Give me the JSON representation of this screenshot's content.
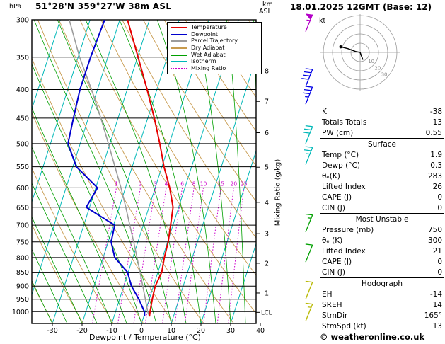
{
  "header": {
    "pressure_unit": "hPa",
    "title": "51°28'N 359°27'W 38m ASL",
    "altitude_unit_top": "km",
    "altitude_unit_bottom": "ASL",
    "datetime": "18.01.2025 12GMT (Base: 12)"
  },
  "axes": {
    "pressure_ticks": [
      300,
      350,
      400,
      450,
      500,
      550,
      600,
      650,
      700,
      750,
      800,
      850,
      900,
      950,
      1000
    ],
    "temp_ticks": [
      -30,
      -20,
      -10,
      0,
      10,
      20,
      30,
      40
    ],
    "xlabel": "Dewpoint / Temperature (°C)",
    "right_axis_label": "Mixing Ratio (g/kg)",
    "km_ticks": [
      {
        "km": 8,
        "p": 370
      },
      {
        "km": 7,
        "p": 420
      },
      {
        "km": 6,
        "p": 478
      },
      {
        "km": 5,
        "p": 551
      },
      {
        "km": 4,
        "p": 637
      },
      {
        "km": 3,
        "p": 725
      },
      {
        "km": 2,
        "p": 819
      },
      {
        "km": 1,
        "p": 926
      }
    ],
    "lcl_label": "LCL",
    "lcl_pressure": 1003
  },
  "legend": [
    {
      "label": "Temperature",
      "color": "#e60000",
      "style": "solid"
    },
    {
      "label": "Dewpoint",
      "color": "#0000cd",
      "style": "solid"
    },
    {
      "label": "Parcel Trajectory",
      "color": "#9c9c9c",
      "style": "solid"
    },
    {
      "label": "Dry Adiabat",
      "color": "#c89b4e",
      "style": "solid"
    },
    {
      "label": "Wet Adiabat",
      "color": "#00a000",
      "style": "solid"
    },
    {
      "label": "Isotherm",
      "color": "#00b8b8",
      "style": "solid"
    },
    {
      "label": "Mixing Ratio",
      "color": "#cc00cc",
      "style": "dotted"
    }
  ],
  "chart_data": {
    "type": "skew-t log-p sounding",
    "pressure_range_hpa": [
      300,
      1050
    ],
    "temperature_axis_c": [
      -30,
      40
    ],
    "temperature_profile": {
      "pressure_hpa": [
        1020,
        1000,
        950,
        900,
        850,
        800,
        750,
        700,
        650,
        600,
        550,
        500,
        450,
        400,
        350,
        300
      ],
      "temp_c": [
        1.9,
        1.6,
        1.0,
        0.6,
        1.3,
        0.6,
        0.2,
        -0.8,
        -1.9,
        -5.1,
        -9.3,
        -13.2,
        -17.8,
        -23.3,
        -29.8,
        -37.4
      ]
    },
    "dewpoint_profile": {
      "pressure_hpa": [
        1020,
        1000,
        950,
        900,
        850,
        800,
        750,
        700,
        650,
        600,
        550,
        500,
        450,
        400,
        350,
        300
      ],
      "temp_c": [
        0.3,
        -0.3,
        -3.5,
        -7.4,
        -10.2,
        -16.1,
        -19.0,
        -19.6,
        -31.1,
        -29.4,
        -38.8,
        -44.1,
        -45.0,
        -45.9,
        -45.8,
        -45.1
      ]
    },
    "parcel_profile": {
      "pressure_hpa": [
        1020,
        1000,
        950,
        900,
        850,
        800,
        750,
        700,
        650,
        600,
        550,
        500,
        450,
        400,
        350,
        300
      ],
      "temp_c": [
        1.9,
        0.8,
        -1.3,
        -3.6,
        -6.0,
        -8.6,
        -11.4,
        -14.5,
        -17.8,
        -21.5,
        -25.8,
        -30.5,
        -35.8,
        -42.0,
        -49.5,
        -57.0
      ]
    },
    "isotherms_c": {
      "min": -120,
      "max": 40,
      "step": 10
    },
    "dry_adiabats_theta_k": {
      "min": 230,
      "max": 440,
      "step": 10
    },
    "wet_adiabats_start_c": {
      "min": -30,
      "max": 40,
      "step": 5
    },
    "mixing_ratio_g_kg": [
      1,
      2,
      3,
      4,
      6,
      8,
      10,
      15,
      20,
      25
    ],
    "mixing_ratio_label_pressure": 600,
    "wind_barbs": [
      {
        "pressure": 315,
        "speed_kt": 55,
        "color": "#b400c8"
      },
      {
        "pressure": 395,
        "speed_kt": 40,
        "color": "#0000e6"
      },
      {
        "pressure": 425,
        "speed_kt": 35,
        "color": "#0000e6"
      },
      {
        "pressure": 500,
        "speed_kt": 30,
        "color": "#00b8b8"
      },
      {
        "pressure": 545,
        "speed_kt": 25,
        "color": "#00b8b8"
      },
      {
        "pressure": 720,
        "speed_kt": 15,
        "color": "#00a000"
      },
      {
        "pressure": 815,
        "speed_kt": 10,
        "color": "#00a000"
      },
      {
        "pressure": 950,
        "speed_kt": 10,
        "color": "#b8b800"
      },
      {
        "pressure": 1040,
        "speed_kt": 13,
        "color": "#b8b800"
      }
    ]
  },
  "hodograph": {
    "unit_label": "kt",
    "rings_kt": [
      10,
      20,
      30,
      40
    ],
    "ring_labels_kt": [
      10,
      20,
      30
    ],
    "trace_u_kt": [
      -21,
      -13,
      -5,
      0,
      3
    ],
    "trace_v_kt": [
      6,
      4,
      1,
      0,
      -8
    ],
    "marker_u_kt": -21,
    "marker_v_kt": 6
  },
  "panel": {
    "groups": [
      {
        "header": "",
        "rows": [
          [
            "K",
            "-38"
          ],
          [
            "Totals Totals",
            "13"
          ],
          [
            "PW (cm)",
            "0.55"
          ]
        ]
      },
      {
        "header": "Surface",
        "rows": [
          [
            "Temp (°C)",
            "1.9"
          ],
          [
            "Dewp (°C)",
            "0.3"
          ],
          [
            "θₑ(K)",
            "283"
          ],
          [
            "Lifted Index",
            "26"
          ],
          [
            "CAPE (J)",
            "0"
          ],
          [
            "CIN (J)",
            "0"
          ]
        ]
      },
      {
        "header": "Most Unstable",
        "rows": [
          [
            "Pressure (mb)",
            "750"
          ],
          [
            "θₑ (K)",
            "300"
          ],
          [
            "Lifted Index",
            "21"
          ],
          [
            "CAPE (J)",
            "0"
          ],
          [
            "CIN (J)",
            "0"
          ]
        ]
      },
      {
        "header": "Hodograph",
        "rows": [
          [
            "EH",
            "-14"
          ],
          [
            "SREH",
            "14"
          ],
          [
            "StmDir",
            "165°"
          ],
          [
            "StmSpd (kt)",
            "13"
          ]
        ]
      }
    ]
  },
  "footer": {
    "copyright": "© weatheronline.co.uk"
  },
  "colors": {
    "temperature": "#e60000",
    "dewpoint": "#0000cd",
    "parcel": "#9c9c9c",
    "dry_adiabat": "#c89b4e",
    "wet_adiabat": "#00a000",
    "isotherm": "#00b8b8",
    "mixing_ratio": "#cc00cc",
    "grid": "#000000",
    "hodograph_ring": "#999999"
  }
}
